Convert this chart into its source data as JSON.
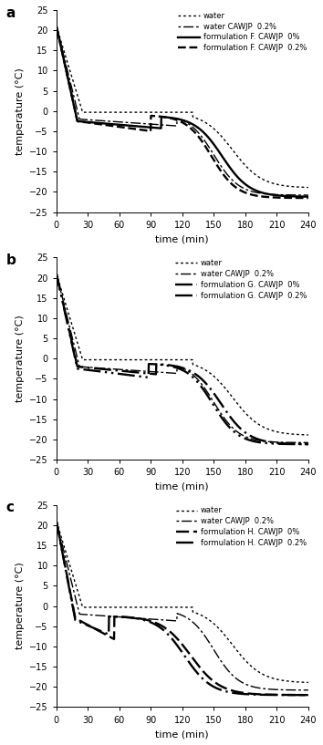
{
  "panel_labels": [
    "a",
    "b",
    "c"
  ],
  "legend_labels": [
    [
      "water",
      "water CAWJP  0.2%",
      "formulation F. CAWJP  0%",
      "formulation F. CAWJP  0.2%"
    ],
    [
      "water",
      "water CAWJP  0.2%",
      "formulation G. CAWJP  0%",
      "formulation G. CAWJP  0.2%"
    ],
    [
      "water",
      "water CAWJP  0.2%",
      "formulation H. CAWJP  0%",
      "formulation H. CAWJP  0.2%"
    ]
  ],
  "ylim": [
    -25,
    25
  ],
  "xlim": [
    0,
    240
  ],
  "yticks": [
    -25,
    -20,
    -15,
    -10,
    -5,
    0,
    5,
    10,
    15,
    20,
    25
  ],
  "xticks": [
    0,
    30,
    60,
    90,
    120,
    150,
    180,
    210,
    240
  ],
  "ylabel": "temperature (°C)",
  "xlabel": "time (min)",
  "figsize": [
    3.54,
    8.17
  ],
  "dpi": 100
}
